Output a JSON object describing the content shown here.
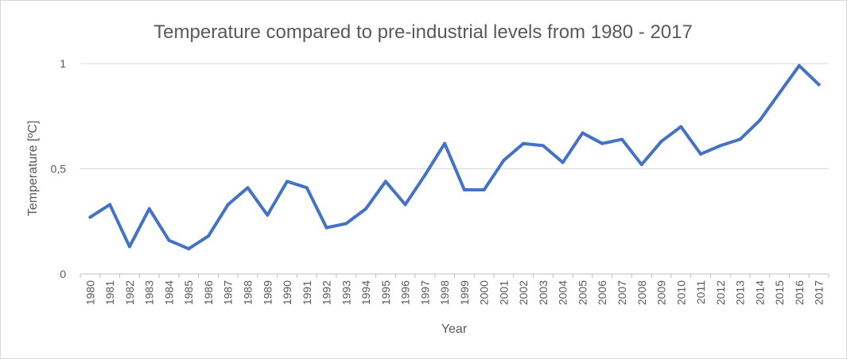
{
  "chart_data": {
    "type": "line",
    "title": "Temperature  compared to pre-industrial levels from 1980 - 2017",
    "xlabel": "Year",
    "ylabel": "Temperature [ºC]",
    "ylim": [
      0,
      1
    ],
    "y_ticks": [
      "0",
      "0,5",
      "1"
    ],
    "y_tick_values": [
      0,
      0.5,
      1
    ],
    "grid": true,
    "legend": "none",
    "line_color": "#4472c4",
    "categories": [
      "1980",
      "1981",
      "1982",
      "1983",
      "1984",
      "1985",
      "1986",
      "1987",
      "1988",
      "1989",
      "1990",
      "1991",
      "1992",
      "1993",
      "1994",
      "1995",
      "1996",
      "1997",
      "1998",
      "1999",
      "2000",
      "2001",
      "2002",
      "2003",
      "2004",
      "2005",
      "2006",
      "2007",
      "2008",
      "2009",
      "2010",
      "2011",
      "2012",
      "2013",
      "2014",
      "2015",
      "2016",
      "2017"
    ],
    "series": [
      {
        "values": [
          0.27,
          0.33,
          0.13,
          0.31,
          0.16,
          0.12,
          0.18,
          0.33,
          0.41,
          0.28,
          0.44,
          0.41,
          0.22,
          0.24,
          0.31,
          0.44,
          0.33,
          0.47,
          0.62,
          0.4,
          0.4,
          0.54,
          0.62,
          0.61,
          0.53,
          0.67,
          0.62,
          0.64,
          0.52,
          0.63,
          0.7,
          0.57,
          0.61,
          0.64,
          0.73,
          0.86,
          0.99,
          0.9
        ]
      }
    ]
  }
}
